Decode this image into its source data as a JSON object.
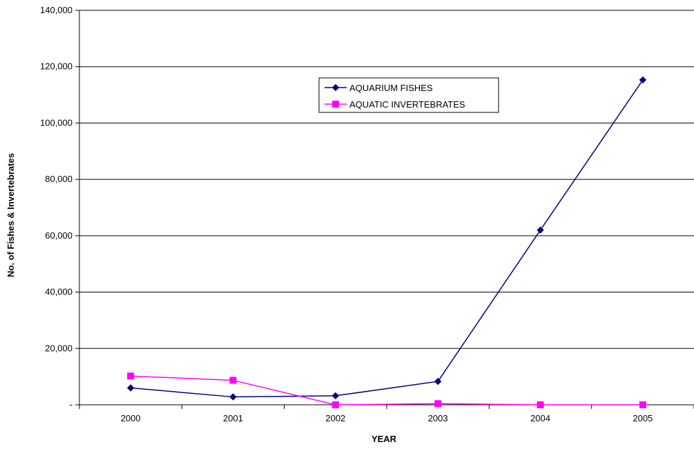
{
  "chart_data": {
    "type": "line",
    "title": "",
    "xlabel": "YEAR",
    "ylabel": "No. of Fishes & Invertebrates",
    "categories": [
      "2000",
      "2001",
      "2002",
      "2003",
      "2004",
      "2005"
    ],
    "ylim": [
      0,
      140000
    ],
    "yticks": [
      0,
      20000,
      40000,
      60000,
      80000,
      100000,
      120000,
      140000
    ],
    "ytick_labels": [
      "-",
      "20,000",
      "40,000",
      "60,000",
      "80,000",
      "100,000",
      "120,000",
      "140,000"
    ],
    "grid": true,
    "legend_position": "top-center",
    "series": [
      {
        "name": "AQUARIUM FISHES",
        "color": "#000080",
        "marker": "diamond",
        "values": [
          6000,
          2800,
          3200,
          8300,
          62000,
          115300
        ]
      },
      {
        "name": "AQUATIC INVERTEBRATES",
        "color": "#FF00FF",
        "marker": "square",
        "values": [
          10200,
          8700,
          0,
          400,
          0,
          0
        ]
      }
    ]
  }
}
